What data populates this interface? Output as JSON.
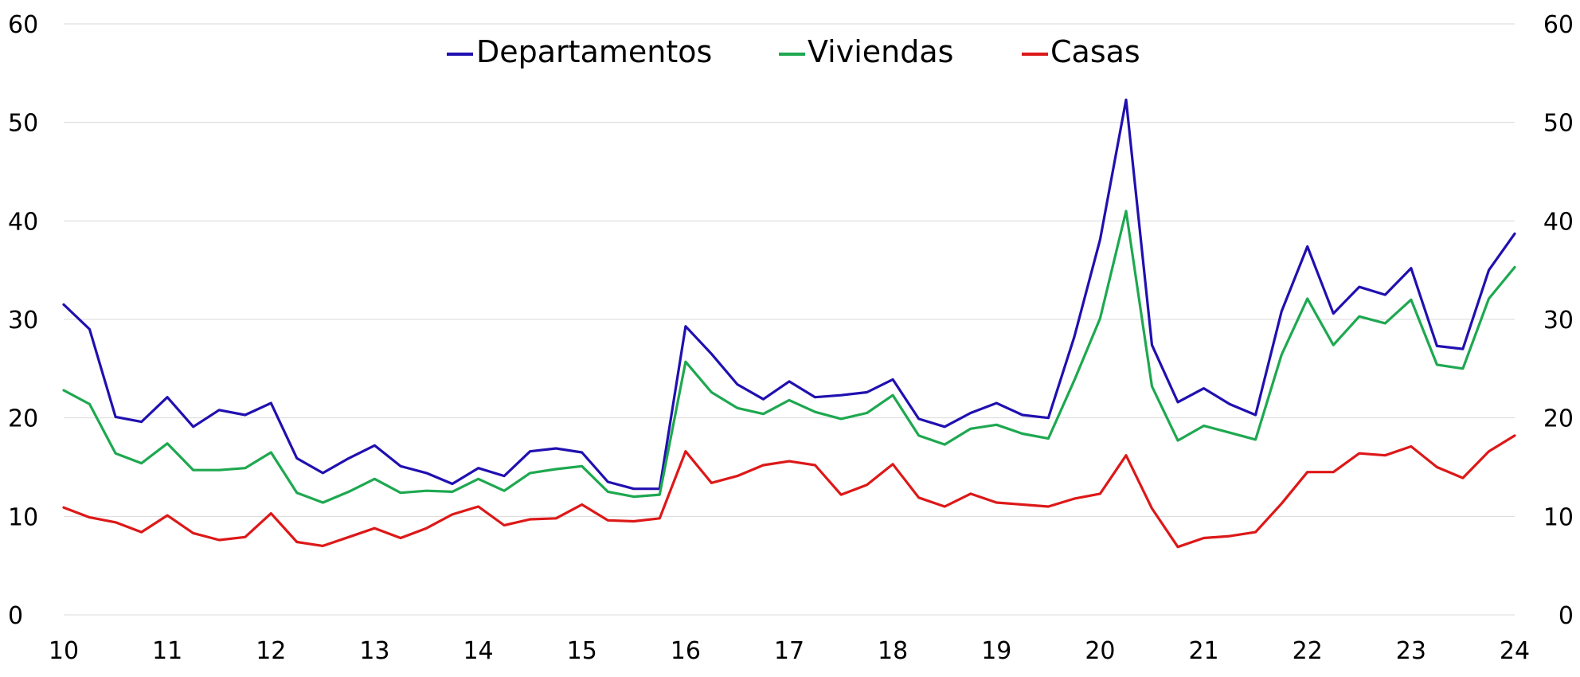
{
  "chart_data": {
    "type": "line",
    "title": "",
    "xlabel": "",
    "ylabel": "",
    "ylim": [
      0,
      60
    ],
    "y_ticks": [
      "0",
      "10",
      "20",
      "30",
      "40",
      "50",
      "60"
    ],
    "x_tick_labels": [
      "10",
      "11",
      "12",
      "13",
      "14",
      "15",
      "16",
      "17",
      "18",
      "19",
      "20",
      "21",
      "22",
      "23",
      "24"
    ],
    "x_range": [
      2010,
      2024
    ],
    "x_start": 2010.0,
    "x_step": 0.25,
    "legend_position": "top-center",
    "grid": "horizontal",
    "series": [
      {
        "name": "Departamentos",
        "color": "#2010b0",
        "values": [
          31.5,
          29.0,
          20.1,
          19.6,
          22.1,
          19.1,
          20.8,
          20.3,
          21.5,
          15.9,
          14.4,
          15.9,
          17.2,
          15.1,
          14.4,
          13.3,
          14.9,
          14.1,
          16.6,
          16.9,
          16.5,
          13.5,
          12.8,
          12.8,
          29.3,
          26.5,
          23.4,
          21.9,
          23.7,
          22.1,
          22.3,
          22.6,
          23.9,
          19.9,
          19.1,
          20.5,
          21.5,
          20.3,
          20.0,
          28.2,
          38.1,
          52.3,
          27.4,
          21.6,
          23.0,
          21.4,
          20.3,
          30.8,
          37.4,
          30.6,
          33.3,
          32.5,
          35.2,
          27.3,
          27.0,
          35.0,
          38.7
        ]
      },
      {
        "name": "Viviendas",
        "color": "#1ea850",
        "values": [
          22.8,
          21.4,
          16.4,
          15.4,
          17.4,
          14.7,
          14.7,
          14.9,
          16.5,
          12.4,
          11.4,
          12.5,
          13.8,
          12.4,
          12.6,
          12.5,
          13.8,
          12.6,
          14.4,
          14.8,
          15.1,
          12.5,
          12.0,
          12.2,
          25.7,
          22.6,
          21.0,
          20.4,
          21.8,
          20.6,
          19.9,
          20.5,
          22.3,
          18.2,
          17.3,
          18.9,
          19.3,
          18.4,
          17.9,
          23.8,
          30.1,
          41.0,
          23.2,
          17.7,
          19.2,
          18.5,
          17.8,
          26.4,
          32.1,
          27.4,
          30.3,
          29.6,
          32.0,
          25.4,
          25.0,
          32.1,
          35.3
        ]
      },
      {
        "name": "Casas",
        "color": "#dd1818",
        "values": [
          10.9,
          9.9,
          9.4,
          8.4,
          10.1,
          8.3,
          7.6,
          7.9,
          10.3,
          7.4,
          7.0,
          7.9,
          8.8,
          7.8,
          8.8,
          10.2,
          11.0,
          9.1,
          9.7,
          9.8,
          11.2,
          9.6,
          9.5,
          9.8,
          16.6,
          13.4,
          14.1,
          15.2,
          15.6,
          15.2,
          12.2,
          13.2,
          15.3,
          11.9,
          11.0,
          12.3,
          11.4,
          11.2,
          11.0,
          11.8,
          12.3,
          16.2,
          10.8,
          6.9,
          7.8,
          8.0,
          8.4,
          11.3,
          14.5,
          14.5,
          16.4,
          16.2,
          17.1,
          15.0,
          13.9,
          16.6,
          18.2
        ]
      }
    ]
  }
}
